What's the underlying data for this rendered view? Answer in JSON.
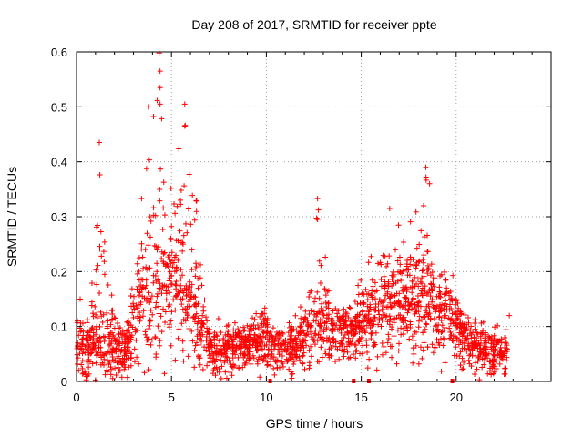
{
  "chart_data": {
    "type": "scatter",
    "title": "Day 208 of 2017, SRMTID for receiver ppte",
    "xlabel": "GPS time / hours",
    "ylabel": "SRMTID / TECUs",
    "xlim": [
      0,
      25
    ],
    "ylim": [
      0,
      0.6
    ],
    "xticks": [
      0,
      5,
      10,
      15,
      20
    ],
    "yticks": [
      0,
      0.1,
      0.2,
      0.3,
      0.4,
      0.5,
      0.6
    ],
    "xtick_labels": [
      "0",
      "5",
      "10",
      "15",
      "20"
    ],
    "ytick_labels": [
      "0",
      "0.1",
      "0.2",
      "0.3",
      "0.4",
      "0.5",
      "0.6"
    ],
    "grid": true,
    "marker": "+",
    "color": "#ff0000",
    "data_gaps_x": [
      10.2,
      14.6,
      15.4,
      19.8
    ],
    "activity_envelope": [
      {
        "x": 0.0,
        "median": 0.06,
        "spread": 0.05,
        "peak": 0.14
      },
      {
        "x": 1.0,
        "median": 0.06,
        "spread": 0.05,
        "peak": 0.25
      },
      {
        "x": 1.2,
        "median": 0.08,
        "spread": 0.06,
        "peak": 0.435
      },
      {
        "x": 2.0,
        "median": 0.05,
        "spread": 0.05,
        "peak": 0.18
      },
      {
        "x": 2.5,
        "median": 0.04,
        "spread": 0.04,
        "peak": 0.12
      },
      {
        "x": 3.0,
        "median": 0.1,
        "spread": 0.08,
        "peak": 0.25
      },
      {
        "x": 3.5,
        "median": 0.13,
        "spread": 0.1,
        "peak": 0.35
      },
      {
        "x": 4.0,
        "median": 0.15,
        "spread": 0.12,
        "peak": 0.5
      },
      {
        "x": 4.4,
        "median": 0.17,
        "spread": 0.13,
        "peak": 0.598
      },
      {
        "x": 5.0,
        "median": 0.15,
        "spread": 0.12,
        "peak": 0.44
      },
      {
        "x": 5.7,
        "median": 0.14,
        "spread": 0.1,
        "peak": 0.505
      },
      {
        "x": 6.5,
        "median": 0.1,
        "spread": 0.08,
        "peak": 0.3
      },
      {
        "x": 7.0,
        "median": 0.05,
        "spread": 0.04,
        "peak": 0.12
      },
      {
        "x": 8.0,
        "median": 0.05,
        "spread": 0.04,
        "peak": 0.12
      },
      {
        "x": 9.0,
        "median": 0.06,
        "spread": 0.04,
        "peak": 0.13
      },
      {
        "x": 10.0,
        "median": 0.07,
        "spread": 0.05,
        "peak": 0.15
      },
      {
        "x": 11.0,
        "median": 0.05,
        "spread": 0.04,
        "peak": 0.1
      },
      {
        "x": 12.0,
        "median": 0.07,
        "spread": 0.05,
        "peak": 0.15
      },
      {
        "x": 12.7,
        "median": 0.09,
        "spread": 0.06,
        "peak": 0.333
      },
      {
        "x": 13.5,
        "median": 0.09,
        "spread": 0.06,
        "peak": 0.15
      },
      {
        "x": 14.5,
        "median": 0.08,
        "spread": 0.05,
        "peak": 0.15
      },
      {
        "x": 15.5,
        "median": 0.11,
        "spread": 0.07,
        "peak": 0.25
      },
      {
        "x": 16.5,
        "median": 0.13,
        "spread": 0.09,
        "peak": 0.315
      },
      {
        "x": 17.5,
        "median": 0.13,
        "spread": 0.09,
        "peak": 0.28
      },
      {
        "x": 18.4,
        "median": 0.15,
        "spread": 0.1,
        "peak": 0.39
      },
      {
        "x": 19.0,
        "median": 0.1,
        "spread": 0.07,
        "peak": 0.2
      },
      {
        "x": 19.5,
        "median": 0.12,
        "spread": 0.08,
        "peak": 0.21
      },
      {
        "x": 20.5,
        "median": 0.07,
        "spread": 0.05,
        "peak": 0.14
      },
      {
        "x": 21.5,
        "median": 0.05,
        "spread": 0.04,
        "peak": 0.11
      },
      {
        "x": 22.7,
        "median": 0.04,
        "spread": 0.03,
        "peak": 0.12
      }
    ],
    "sample_count": 2200,
    "notable_points": [
      {
        "x": 1.2,
        "y": 0.435
      },
      {
        "x": 4.35,
        "y": 0.598
      },
      {
        "x": 4.4,
        "y": 0.565
      },
      {
        "x": 4.4,
        "y": 0.535
      },
      {
        "x": 4.4,
        "y": 0.505
      },
      {
        "x": 3.8,
        "y": 0.5
      },
      {
        "x": 5.7,
        "y": 0.505
      },
      {
        "x": 5.7,
        "y": 0.465
      },
      {
        "x": 12.7,
        "y": 0.333
      },
      {
        "x": 12.7,
        "y": 0.295
      },
      {
        "x": 16.5,
        "y": 0.315
      },
      {
        "x": 18.4,
        "y": 0.39
      },
      {
        "x": 18.6,
        "y": 0.36
      },
      {
        "x": 22.8,
        "y": 0.12
      }
    ]
  }
}
